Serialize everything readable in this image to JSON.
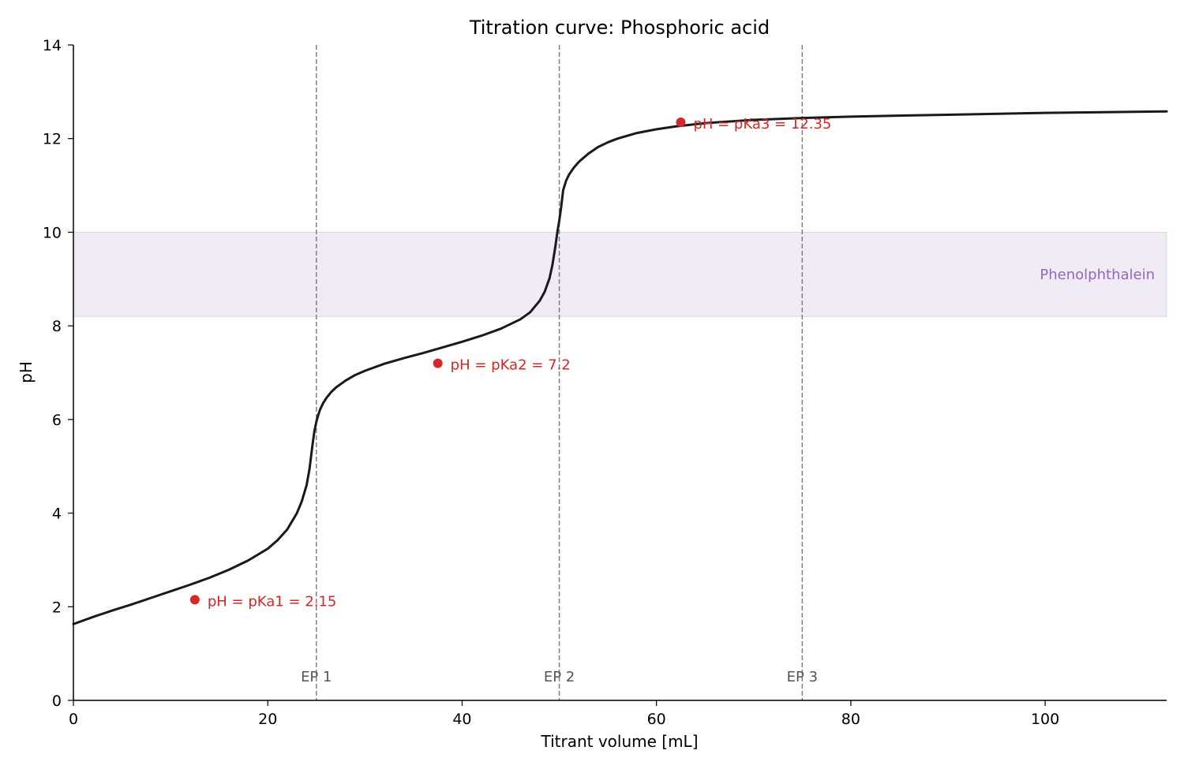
{
  "chart_data": {
    "type": "line",
    "title": "Titration curve: Phosphoric acid",
    "xlabel": "Titrant volume [mL]",
    "ylabel": "pH",
    "xlim": [
      0,
      112.5
    ],
    "ylim": [
      0,
      14
    ],
    "x_ticks": [
      "0",
      "20",
      "40",
      "60",
      "80",
      "100"
    ],
    "y_ticks": [
      "0",
      "2",
      "4",
      "6",
      "8",
      "10",
      "12",
      "14"
    ],
    "grid": false,
    "series": [
      {
        "x": [
          0,
          2,
          4,
          6,
          8,
          10,
          12,
          14,
          16,
          18,
          20,
          21,
          22,
          23,
          23.5,
          24,
          24.3,
          24.6,
          24.8,
          25,
          25.2,
          25.4,
          25.7,
          26,
          26.5,
          27,
          28,
          29,
          30,
          32,
          34,
          36,
          37.5,
          38,
          40,
          42,
          44,
          46,
          47,
          48,
          48.5,
          49,
          49.3,
          49.6,
          49.8,
          50,
          50.2,
          50.4,
          50.7,
          51,
          51.5,
          52,
          53,
          54,
          55,
          56,
          58,
          60,
          62,
          65,
          70,
          75,
          80,
          90,
          100,
          112.5
        ],
        "y": [
          1.63,
          1.78,
          1.92,
          2.05,
          2.19,
          2.33,
          2.47,
          2.62,
          2.79,
          2.99,
          3.24,
          3.42,
          3.65,
          4.0,
          4.25,
          4.6,
          4.95,
          5.45,
          5.75,
          5.95,
          6.1,
          6.22,
          6.35,
          6.45,
          6.58,
          6.68,
          6.83,
          6.95,
          7.04,
          7.19,
          7.31,
          7.42,
          7.2,
          7.54,
          7.66,
          7.79,
          7.94,
          8.14,
          8.29,
          8.54,
          8.73,
          9.02,
          9.31,
          9.7,
          10.0,
          10.25,
          10.55,
          10.9,
          11.1,
          11.23,
          11.38,
          11.5,
          11.68,
          11.82,
          11.92,
          12.0,
          12.12,
          12.2,
          12.26,
          12.33,
          12.4,
          12.44,
          12.47,
          12.51,
          12.55,
          12.58
        ],
        "color": "#1a1a1a"
      }
    ],
    "pka_points": [
      {
        "x": 12.5,
        "y": 2.15,
        "label": "pH = pKa1 = 2.15"
      },
      {
        "x": 37.5,
        "y": 7.2,
        "label": "pH = pKa2 = 7.2"
      },
      {
        "x": 62.5,
        "y": 12.35,
        "label": "pH = pKa3 = 12.35"
      }
    ],
    "equivalence_points": [
      {
        "x": 25,
        "label": "EP 1"
      },
      {
        "x": 50,
        "label": "EP 2"
      },
      {
        "x": 75,
        "label": "EP 3"
      }
    ],
    "indicator_band": {
      "label": "Phenolphthalein",
      "ymin": 8.2,
      "ymax": 10.0
    },
    "colors": {
      "curve": "#1a1a1a",
      "pka": "#d62728",
      "ep_line": "#808080",
      "ep_text": "#555555",
      "band_fill": "#9467bd",
      "band_text": "#9467bd"
    }
  }
}
